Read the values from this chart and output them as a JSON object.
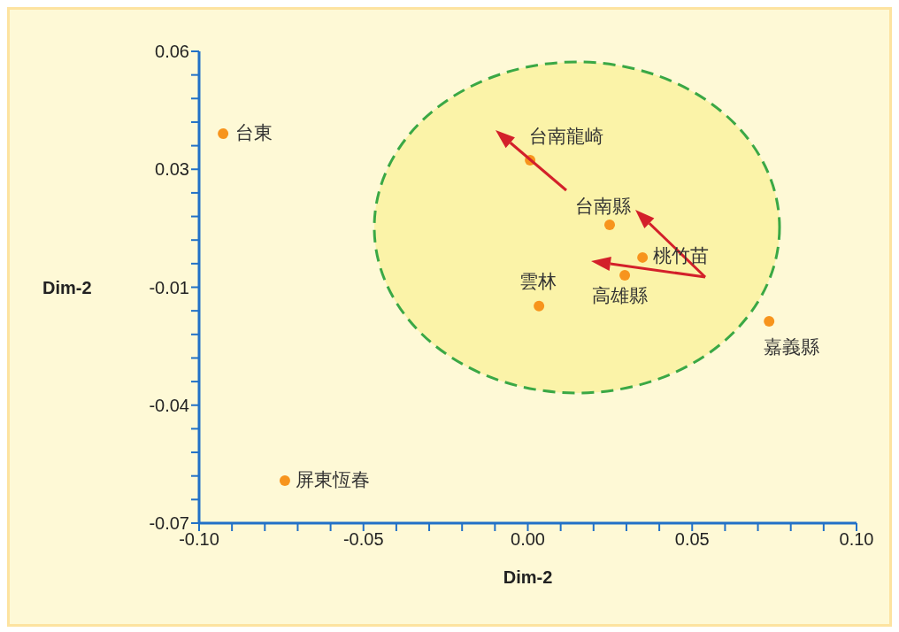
{
  "chart_data": {
    "type": "scatter",
    "xlabel": "Dim-2",
    "ylabel": "Dim-2",
    "x": [
      -0.0927,
      0.0007,
      0.0249,
      0.0349,
      0.0295,
      0.0034,
      0.0734,
      -0.0739
    ],
    "values": [
      0.0373,
      0.03,
      0.0122,
      0.0032,
      -0.0017,
      -0.0102,
      -0.0144,
      -0.0583
    ],
    "color": "#f7941d",
    "marker": "circle",
    "grid": false,
    "legend": false,
    "xlim": [
      -0.1,
      0.1
    ],
    "ylim": [
      -0.07,
      0.06
    ],
    "xticks": [
      {
        "value": -0.1,
        "label": "-0.10"
      },
      {
        "value": -0.09,
        "label": null
      },
      {
        "value": -0.08,
        "label": null
      },
      {
        "value": -0.07,
        "label": null
      },
      {
        "value": -0.06,
        "label": null
      },
      {
        "value": -0.05,
        "label": "-0.05"
      },
      {
        "value": -0.04,
        "label": null
      },
      {
        "value": -0.03,
        "label": null
      },
      {
        "value": -0.02,
        "label": null
      },
      {
        "value": -0.01,
        "label": null
      },
      {
        "value": 0,
        "label": "0.00"
      },
      {
        "value": 0.01,
        "label": null
      },
      {
        "value": 0.02,
        "label": null
      },
      {
        "value": 0.03,
        "label": null
      },
      {
        "value": 0.04,
        "label": null
      },
      {
        "value": 0.05,
        "label": "0.05"
      },
      {
        "value": 0.06,
        "label": null
      },
      {
        "value": 0.07,
        "label": null
      },
      {
        "value": 0.08,
        "label": null
      },
      {
        "value": 0.09,
        "label": null
      },
      {
        "value": 0.1,
        "label": "0.10"
      }
    ],
    "yticks": [
      {
        "value": 0.06,
        "label": "0.06"
      },
      {
        "value": 0.0535,
        "label": null
      },
      {
        "value": 0.047,
        "label": null
      },
      {
        "value": 0.0405,
        "label": null
      },
      {
        "value": 0.034,
        "label": null
      },
      {
        "value": 0.0275,
        "label": "0.03"
      },
      {
        "value": 0.021,
        "label": null
      },
      {
        "value": 0.0145,
        "label": null
      },
      {
        "value": 0.008,
        "label": null
      },
      {
        "value": 0.0015,
        "label": null
      },
      {
        "value": -0.005,
        "label": "-0.01"
      },
      {
        "value": -0.0115,
        "label": null
      },
      {
        "value": -0.018,
        "label": null
      },
      {
        "value": -0.0245,
        "label": null
      },
      {
        "value": -0.031,
        "label": null
      },
      {
        "value": -0.0375,
        "label": "-0.04"
      },
      {
        "value": -0.044,
        "label": null
      },
      {
        "value": -0.0505,
        "label": null
      },
      {
        "value": -0.057,
        "label": null
      },
      {
        "value": -0.0635,
        "label": null
      },
      {
        "value": -0.07,
        "label": "-0.07"
      }
    ],
    "annotations": [
      {
        "text": "台東",
        "x": -0.0927,
        "y": 0.0373
      },
      {
        "text": "台南龍崎",
        "x": 0.0007,
        "y": 0.03
      },
      {
        "text": "台南縣",
        "x": 0.0249,
        "y": 0.0122
      },
      {
        "text": "桃竹苗",
        "x": 0.0349,
        "y": 0.0032
      },
      {
        "text": "高雄縣",
        "x": 0.0295,
        "y": -0.0017
      },
      {
        "text": "雲林",
        "x": 0.0034,
        "y": -0.0102
      },
      {
        "text": "嘉義縣",
        "x": 0.0734,
        "y": -0.0144
      },
      {
        "text": "屏東恆春",
        "x": -0.0739,
        "y": -0.0583
      }
    ]
  }
}
